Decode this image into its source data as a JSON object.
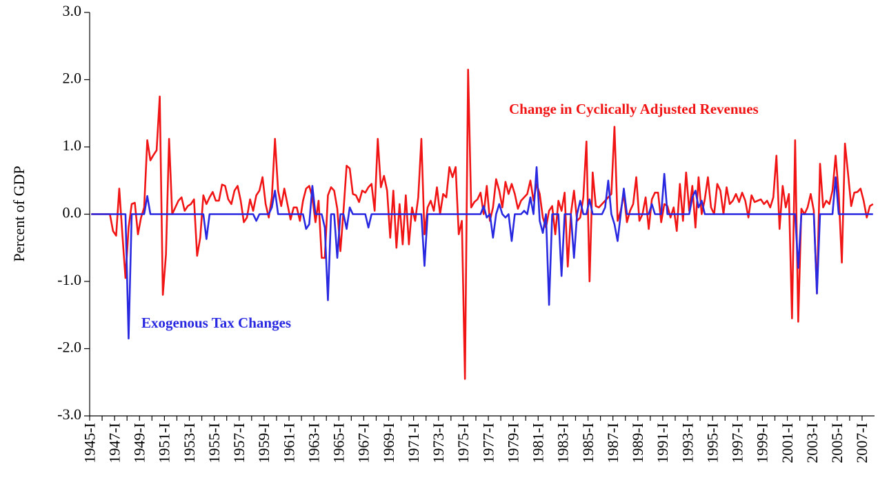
{
  "chart_data": {
    "type": "line",
    "y_label": "Percent of GDP",
    "ylim": [
      -3,
      3
    ],
    "yticks": [
      {
        "value": -3,
        "label": "-3.0"
      },
      {
        "value": -2,
        "label": "-2.0"
      },
      {
        "value": -1,
        "label": "-1.0"
      },
      {
        "value": 0,
        "label": "0.0"
      },
      {
        "value": 1,
        "label": "1.0"
      },
      {
        "value": 2,
        "label": "2.0"
      },
      {
        "value": 3,
        "label": "3.0"
      }
    ],
    "categories": [
      "1945-I",
      null,
      null,
      null,
      null,
      null,
      null,
      null,
      "1947-I",
      null,
      null,
      null,
      null,
      null,
      null,
      null,
      "1949-I",
      null,
      null,
      null,
      null,
      null,
      null,
      null,
      "1951-I",
      null,
      null,
      null,
      null,
      null,
      null,
      null,
      "1953-I",
      null,
      null,
      null,
      null,
      null,
      null,
      null,
      "1955-I",
      null,
      null,
      null,
      null,
      null,
      null,
      null,
      "1957-I",
      null,
      null,
      null,
      null,
      null,
      null,
      null,
      "1959-I",
      null,
      null,
      null,
      null,
      null,
      null,
      null,
      "1961-I",
      null,
      null,
      null,
      null,
      null,
      null,
      null,
      "1963-I",
      null,
      null,
      null,
      null,
      null,
      null,
      null,
      "1965-I",
      null,
      null,
      null,
      null,
      null,
      null,
      null,
      "1967-I",
      null,
      null,
      null,
      null,
      null,
      null,
      null,
      "1969-I",
      null,
      null,
      null,
      null,
      null,
      null,
      null,
      "1971-I",
      null,
      null,
      null,
      null,
      null,
      null,
      null,
      "1973-I",
      null,
      null,
      null,
      null,
      null,
      null,
      null,
      "1975-I",
      null,
      null,
      null,
      null,
      null,
      null,
      null,
      "1977-I",
      null,
      null,
      null,
      null,
      null,
      null,
      null,
      "1979-I",
      null,
      null,
      null,
      null,
      null,
      null,
      null,
      "1981-I",
      null,
      null,
      null,
      null,
      null,
      null,
      null,
      "1983-I",
      null,
      null,
      null,
      null,
      null,
      null,
      null,
      "1985-I",
      null,
      null,
      null,
      null,
      null,
      null,
      null,
      "1987-I",
      null,
      null,
      null,
      null,
      null,
      null,
      null,
      "1989-I",
      null,
      null,
      null,
      null,
      null,
      null,
      null,
      "1991-I",
      null,
      null,
      null,
      null,
      null,
      null,
      null,
      "1993-I",
      null,
      null,
      null,
      null,
      null,
      null,
      null,
      "1995-I",
      null,
      null,
      null,
      null,
      null,
      null,
      null,
      "1997-I",
      null,
      null,
      null,
      null,
      null,
      null,
      null,
      "1999-I",
      null,
      null,
      null,
      null,
      null,
      null,
      null,
      "2001-I",
      null,
      null,
      null,
      null,
      null,
      null,
      null,
      "2003-I",
      null,
      null,
      null,
      null,
      null,
      null,
      null,
      "2005-I",
      null,
      null,
      null,
      null,
      null,
      null,
      null,
      "2007-I",
      null,
      null,
      null
    ],
    "series": [
      {
        "name": "Change in Cyclically Adjusted Revenues",
        "color": "#f01414",
        "values": [
          0,
          0,
          0,
          0,
          0,
          0,
          0,
          -0.25,
          -0.32,
          0.38,
          -0.3,
          -0.95,
          -0.2,
          0.15,
          0.17,
          -0.3,
          -0.05,
          0.1,
          1.1,
          0.8,
          0.88,
          0.95,
          1.75,
          -1.2,
          -0.6,
          1.12,
          0.0,
          0.1,
          0.2,
          0.25,
          0.05,
          0.12,
          0.15,
          0.22,
          -0.62,
          -0.35,
          0.28,
          0.15,
          0.25,
          0.33,
          0.2,
          0.2,
          0.44,
          0.42,
          0.22,
          0.15,
          0.35,
          0.42,
          0.2,
          -0.12,
          -0.05,
          0.22,
          0.05,
          0.28,
          0.35,
          0.55,
          0.15,
          -0.05,
          0.25,
          1.12,
          0.35,
          0.12,
          0.38,
          0.15,
          -0.08,
          0.1,
          0.1,
          -0.1,
          0.2,
          0.38,
          0.42,
          0.25,
          -0.12,
          0.2,
          -0.65,
          -0.65,
          0.28,
          0.4,
          0.35,
          0.08,
          -0.55,
          0.05,
          0.72,
          0.68,
          0.3,
          0.28,
          0.18,
          0.35,
          0.32,
          0.4,
          0.45,
          0.05,
          1.12,
          0.4,
          0.57,
          0.35,
          -0.35,
          0.35,
          -0.5,
          0.15,
          -0.45,
          0.28,
          -0.45,
          0.1,
          -0.1,
          0.25,
          1.12,
          -0.3,
          0.1,
          0.2,
          0.05,
          0.4,
          0.0,
          0.3,
          0.25,
          0.7,
          0.55,
          0.7,
          -0.3,
          -0.1,
          -2.45,
          2.15,
          0.1,
          0.18,
          0.22,
          0.32,
          0.0,
          0.42,
          -0.1,
          0.1,
          0.52,
          0.35,
          0.1,
          0.48,
          0.3,
          0.45,
          0.3,
          0.08,
          0.2,
          0.25,
          0.3,
          0.5,
          0.2,
          0.45,
          0.3,
          -0.05,
          -0.2,
          0.05,
          0.12,
          -0.3,
          0.2,
          0.05,
          0.32,
          -0.78,
          0.0,
          0.35,
          -0.1,
          -0.05,
          0.25,
          1.08,
          -1.0,
          0.62,
          0.12,
          0.1,
          0.15,
          0.2,
          0.25,
          0.3,
          1.3,
          -0.1,
          0.05,
          0.3,
          -0.12,
          0.05,
          0.15,
          0.55,
          -0.1,
          0.0,
          0.25,
          -0.22,
          0.22,
          0.32,
          0.32,
          -0.12,
          0.15,
          0.12,
          -0.05,
          0.1,
          -0.25,
          0.45,
          -0.1,
          0.62,
          0.05,
          0.42,
          -0.2,
          0.55,
          0.0,
          0.22,
          0.55,
          0.1,
          0.0,
          0.45,
          0.35,
          0.0,
          0.4,
          0.15,
          0.2,
          0.3,
          0.18,
          0.32,
          0.2,
          -0.05,
          0.28,
          0.18,
          0.2,
          0.22,
          0.15,
          0.2,
          0.1,
          0.25,
          0.87,
          -0.22,
          0.42,
          0.1,
          0.3,
          -1.55,
          1.1,
          -1.6,
          0.08,
          0.0,
          0.1,
          0.3,
          0.05,
          -1.18,
          0.75,
          0.1,
          0.2,
          0.15,
          0.35,
          0.87,
          0.3,
          -0.72,
          1.05,
          0.6,
          0.12,
          0.32,
          0.33,
          0.38,
          0.2,
          -0.05,
          0.12,
          0.15
        ]
      },
      {
        "name": "Exogenous Tax Changes",
        "color": "#2828e0",
        "values": [
          0,
          0,
          0,
          0,
          0,
          0,
          0,
          0,
          0,
          0,
          0,
          0,
          -1.85,
          0,
          0,
          0,
          0,
          0,
          0.27,
          0,
          0,
          0,
          0,
          0,
          0,
          0,
          0,
          0,
          0,
          0,
          0,
          0,
          0,
          0,
          0,
          0,
          0,
          -0.37,
          0,
          0,
          0,
          0,
          0,
          0,
          0,
          0,
          0,
          0,
          0,
          0,
          0,
          0,
          0,
          -0.1,
          0,
          0,
          0,
          0,
          0.1,
          0.35,
          0,
          0,
          0,
          0,
          0,
          0,
          0,
          0,
          0,
          -0.22,
          -0.15,
          0.42,
          0,
          0,
          0,
          -0.2,
          -1.28,
          0,
          0,
          -0.65,
          0,
          0,
          -0.22,
          0.1,
          0,
          0,
          0,
          0,
          0,
          -0.2,
          0,
          0,
          0,
          0,
          0,
          0,
          0,
          0,
          0,
          0,
          0,
          0,
          0,
          0,
          0,
          0,
          0,
          -0.77,
          0,
          0,
          0,
          0,
          0,
          0,
          0,
          0,
          0,
          0,
          0,
          0,
          0,
          0,
          0,
          0,
          0,
          0,
          0.12,
          -0.05,
          0,
          -0.35,
          0,
          0.15,
          0,
          -0.05,
          0,
          -0.4,
          0,
          0,
          0,
          0.05,
          0,
          0.25,
          0,
          0.7,
          -0.1,
          -0.28,
          0,
          -1.35,
          0,
          0,
          0,
          -0.92,
          0,
          0,
          0,
          -0.65,
          0,
          0.2,
          0,
          0,
          0.22,
          0,
          0,
          0,
          0,
          0.1,
          0.5,
          0,
          -0.15,
          -0.4,
          0,
          0.38,
          0,
          0,
          0,
          0,
          0,
          0,
          0,
          0,
          0.15,
          0,
          0,
          0,
          0.6,
          0,
          0,
          0,
          0,
          0,
          0,
          0,
          0,
          0.25,
          0.35,
          0.1,
          0.2,
          0,
          0,
          0,
          0,
          0,
          0,
          0,
          0,
          0,
          0,
          0,
          0,
          0,
          0,
          0,
          0,
          0,
          0,
          0,
          0,
          0,
          0,
          0,
          0,
          0,
          0,
          0,
          0,
          0,
          0,
          -0.8,
          0,
          0,
          0,
          0,
          0,
          -1.18,
          0,
          0,
          0,
          0,
          0,
          0.55,
          0,
          0,
          0,
          0,
          0,
          0,
          0,
          0,
          0,
          0,
          0,
          0
        ]
      }
    ]
  }
}
